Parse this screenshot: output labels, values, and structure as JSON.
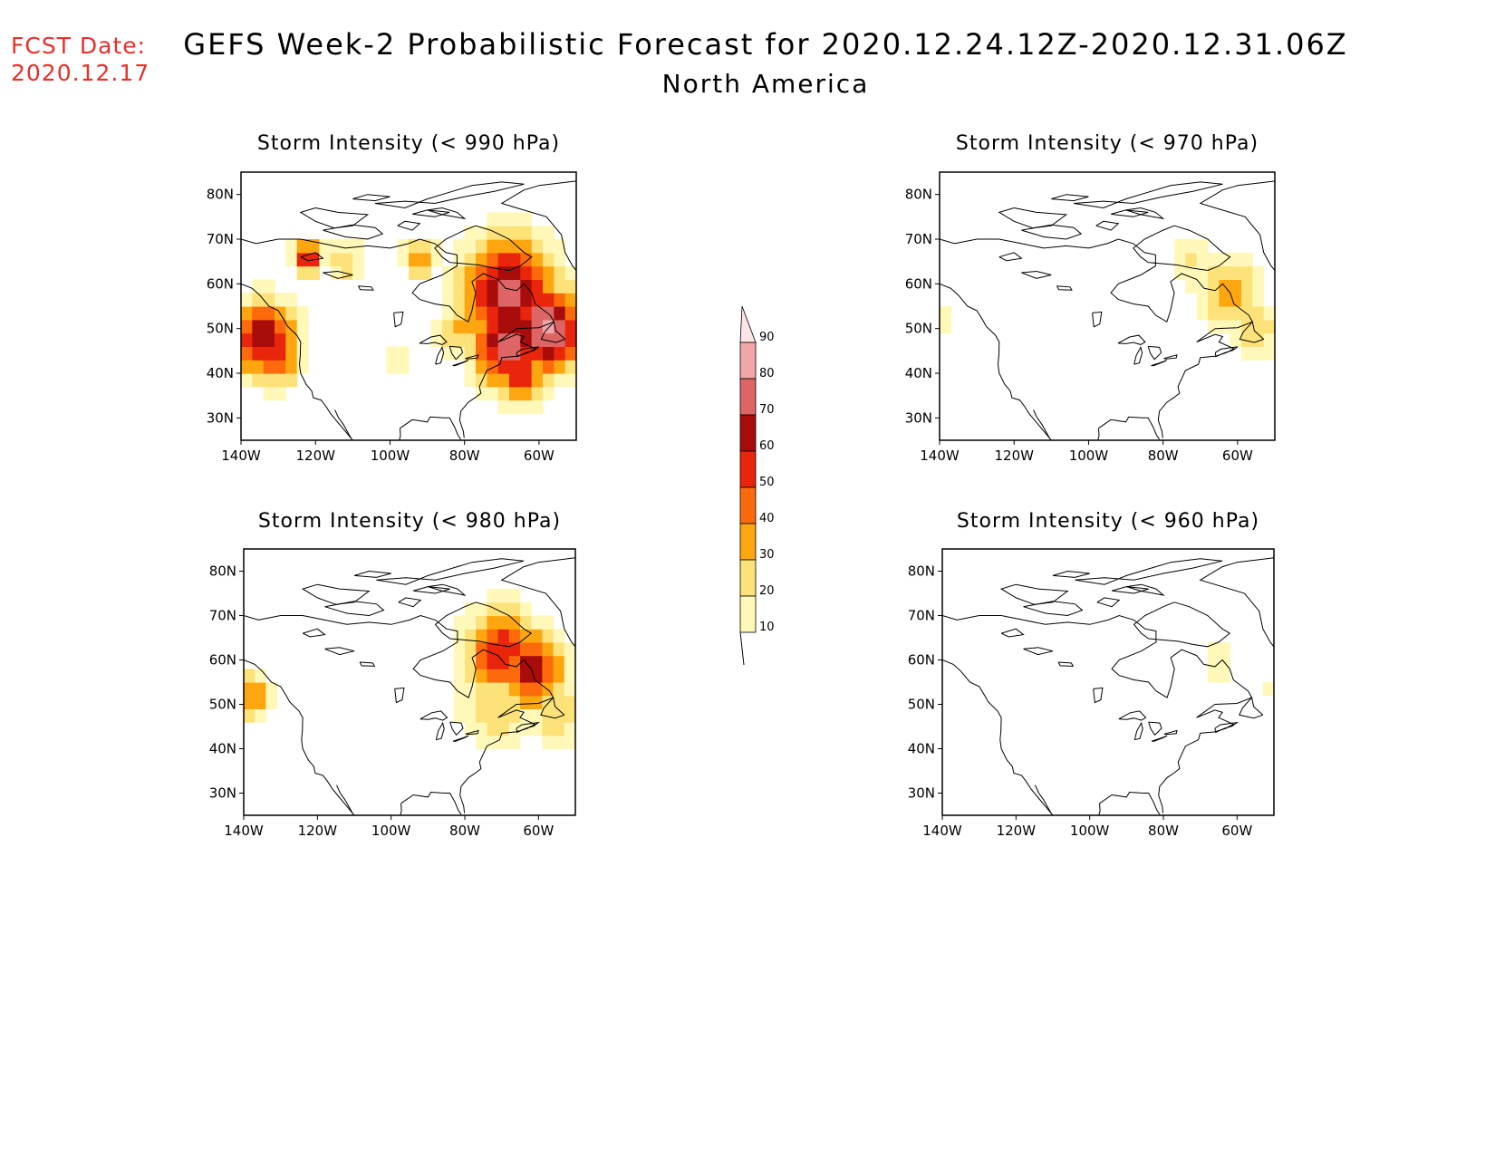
{
  "header": {
    "fcst_label": "FCST Date:",
    "fcst_date": "2020.12.17",
    "title": "GEFS Week-2 Probabilistic Forecast for 2020.12.24.12Z-2020.12.31.06Z",
    "subtitle": "North America"
  },
  "colors": {
    "levels": [
      10,
      20,
      30,
      40,
      50,
      60,
      70,
      80,
      90
    ],
    "fills": [
      "#fff8b8",
      "#fde27a",
      "#fda60f",
      "#fd6a0c",
      "#e9250b",
      "#a80d0b",
      "#dd6565",
      "#f1a6aa",
      "#fde5e7"
    ]
  },
  "colorbar": {
    "labels": [
      "90",
      "80",
      "70",
      "60",
      "50",
      "40",
      "30",
      "20",
      "10"
    ]
  },
  "axes": {
    "lat_labels": [
      "80N",
      "70N",
      "60N",
      "50N",
      "40N",
      "30N"
    ],
    "lon_labels": [
      "140W",
      "120W",
      "100W",
      "80W",
      "60W"
    ]
  },
  "chart_data": [
    {
      "type": "heatmap",
      "title": "Storm Intensity (< 990 hPa)",
      "lon_range": [
        -140,
        -50
      ],
      "lat_range": [
        25,
        85
      ],
      "blobs": [
        {
          "lon": -134,
          "lat": 48,
          "peak": 72,
          "spread": 6
        },
        {
          "lon": -131,
          "lat": 44,
          "peak": 55,
          "spread": 5
        },
        {
          "lon": -122,
          "lat": 66,
          "peak": 60,
          "spread": 3
        },
        {
          "lon": -112,
          "lat": 65,
          "peak": 25,
          "spread": 4
        },
        {
          "lon": -92,
          "lat": 66,
          "peak": 45,
          "spread": 3
        },
        {
          "lon": -98,
          "lat": 44,
          "peak": 22,
          "spread": 3
        },
        {
          "lon": -80,
          "lat": 50,
          "peak": 35,
          "spread": 5
        },
        {
          "lon": -68,
          "lat": 58,
          "peak": 75,
          "spread": 9
        },
        {
          "lon": -58,
          "lat": 50,
          "peak": 85,
          "spread": 7
        },
        {
          "lon": -68,
          "lat": 47,
          "peak": 78,
          "spread": 7
        },
        {
          "lon": -65,
          "lat": 40,
          "peak": 55,
          "spread": 5
        }
      ]
    },
    {
      "type": "heatmap",
      "title": "Storm Intensity (< 970 hPa)",
      "lon_range": [
        -140,
        -50
      ],
      "lat_range": [
        25,
        85
      ],
      "blobs": [
        {
          "lon": -72,
          "lat": 65,
          "peak": 22,
          "spread": 5
        },
        {
          "lon": -62,
          "lat": 58,
          "peak": 40,
          "spread": 6
        },
        {
          "lon": -55,
          "lat": 50,
          "peak": 28,
          "spread": 5
        },
        {
          "lon": -140,
          "lat": 52,
          "peak": 15,
          "spread": 3
        }
      ]
    },
    {
      "type": "heatmap",
      "title": "Storm Intensity (< 980 hPa)",
      "lon_range": [
        -140,
        -50
      ],
      "lat_range": [
        25,
        85
      ],
      "blobs": [
        {
          "lon": -138,
          "lat": 52,
          "peak": 40,
          "spread": 4
        },
        {
          "lon": -70,
          "lat": 62,
          "peak": 60,
          "spread": 7
        },
        {
          "lon": -62,
          "lat": 58,
          "peak": 68,
          "spread": 6
        },
        {
          "lon": -72,
          "lat": 50,
          "peak": 30,
          "spread": 7
        },
        {
          "lon": -55,
          "lat": 48,
          "peak": 30,
          "spread": 5
        }
      ]
    },
    {
      "type": "heatmap",
      "title": "Storm Intensity (< 960 hPa)",
      "lon_range": [
        -140,
        -50
      ],
      "lat_range": [
        25,
        85
      ],
      "blobs": [
        {
          "lon": -65,
          "lat": 60,
          "peak": 18,
          "spread": 4
        },
        {
          "lon": -52,
          "lat": 54,
          "peak": 15,
          "spread": 2
        }
      ]
    }
  ]
}
